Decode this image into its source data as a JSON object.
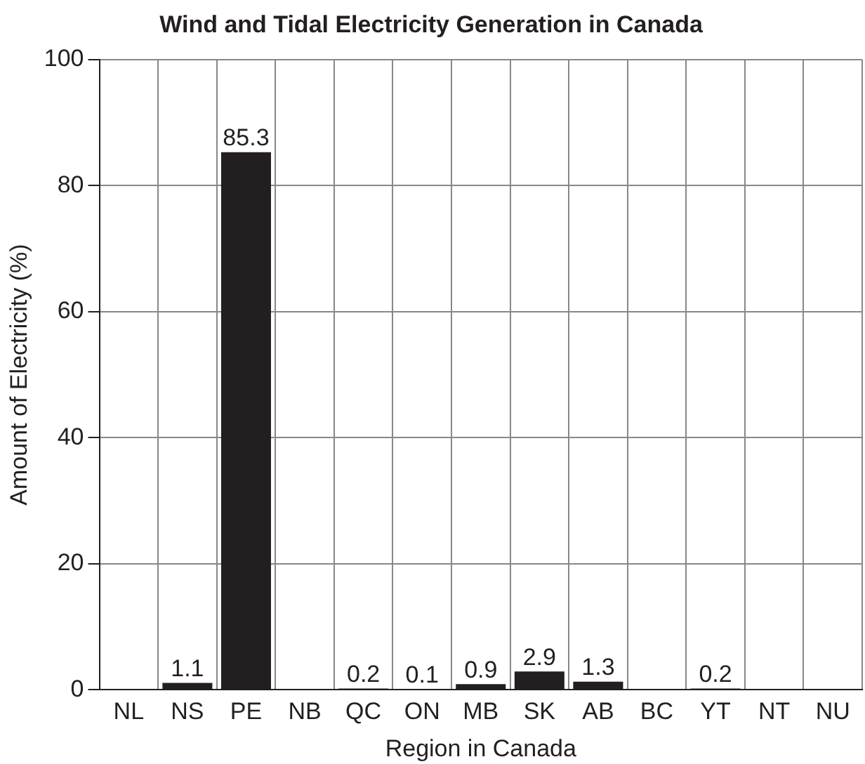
{
  "chart_data": {
    "type": "bar",
    "title": "Wind and Tidal Electricity Generation in Canada",
    "xlabel": "Region in Canada",
    "ylabel": "Amount of Electricity (%)",
    "categories": [
      "NL",
      "NS",
      "PE",
      "NB",
      "QC",
      "ON",
      "MB",
      "SK",
      "AB",
      "BC",
      "YT",
      "NT",
      "NU"
    ],
    "values": [
      null,
      1.1,
      85.3,
      null,
      0.2,
      0.1,
      0.9,
      2.9,
      1.3,
      null,
      0.2,
      null,
      null
    ],
    "color": "#231f20",
    "ylim": [
      0,
      100
    ],
    "yticks": [
      0,
      20,
      40,
      60,
      80,
      100
    ],
    "grid": true,
    "data_labels": true,
    "legend": false
  }
}
